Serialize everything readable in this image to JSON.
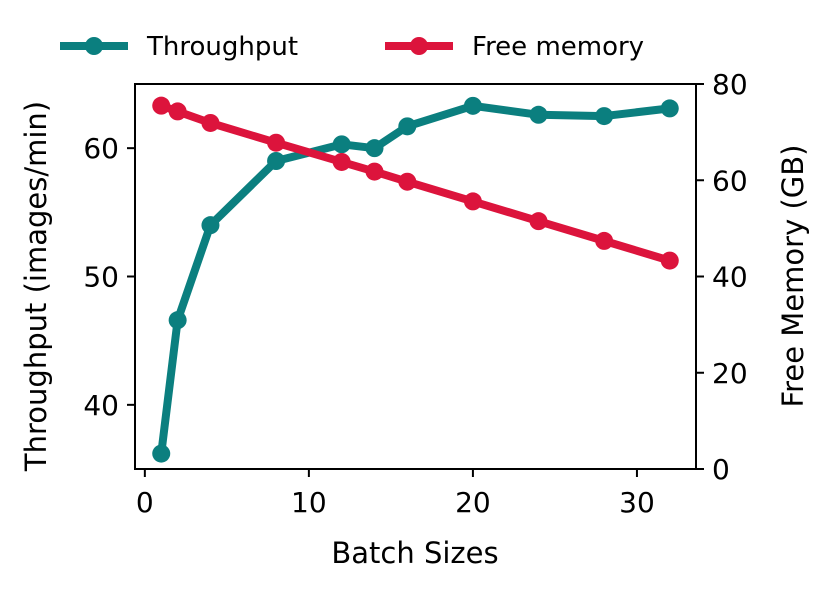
{
  "chart_data": {
    "type": "line",
    "title": "",
    "xlabel": "Batch Sizes",
    "ylabel_left": "Throughput (images/min)",
    "ylabel_right": "Free Memory (GB)",
    "xlim": [
      -0.6,
      33.6
    ],
    "ylim_left": [
      35,
      65
    ],
    "ylim_right": [
      0,
      80
    ],
    "x_ticks": [
      0,
      10,
      20,
      30
    ],
    "y_left_ticks": [
      40,
      50,
      60
    ],
    "y_right_ticks": [
      0,
      20,
      40,
      60,
      80
    ],
    "grid": false,
    "legend_position": "top, above plot",
    "series": [
      {
        "name": "Throughput",
        "axis": "left",
        "color": "#0b7f7f",
        "x": [
          1,
          2,
          4,
          8,
          12,
          14,
          16,
          20,
          24,
          28,
          32
        ],
        "y": [
          36.2,
          46.6,
          54.0,
          59.0,
          60.3,
          60.0,
          61.7,
          63.3,
          62.6,
          62.5,
          63.1
        ]
      },
      {
        "name": "Free memory",
        "axis": "right",
        "color": "#dc143c",
        "x": [
          1,
          2,
          4,
          8,
          12,
          14,
          16,
          20,
          24,
          28,
          32
        ],
        "y": [
          75.5,
          74.3,
          71.9,
          67.8,
          63.8,
          61.8,
          59.7,
          55.6,
          51.5,
          47.4,
          43.3
        ]
      }
    ]
  }
}
